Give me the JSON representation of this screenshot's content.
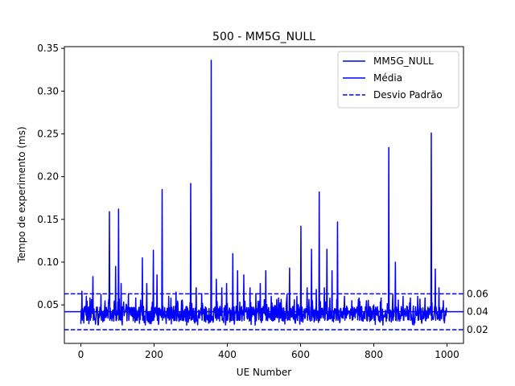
{
  "chart_data": {
    "type": "line",
    "title": "500 - MM5G_NULL",
    "xlabel": "UE Number",
    "ylabel": "Tempo de experimento (ms)",
    "xlim": [
      -45,
      1045
    ],
    "ylim": [
      0.005,
      0.352
    ],
    "x_ticks": [
      0,
      200,
      400,
      600,
      800,
      1000
    ],
    "y_ticks": [
      0.05,
      0.1,
      0.15,
      0.2,
      0.25,
      0.3,
      0.35
    ],
    "x_tick_labels": [
      "0",
      "200",
      "400",
      "600",
      "800",
      "1000"
    ],
    "y_tick_labels": [
      "0.05",
      "0.10",
      "0.15",
      "0.20",
      "0.25",
      "0.30",
      "0.35"
    ],
    "legend_position": "top-right",
    "grid": false,
    "series": [
      {
        "name": "MM5G_NULL",
        "style": "solid",
        "color": "#0000ff",
        "baseline": 0.04,
        "x_range": [
          0,
          999
        ],
        "peaks": [
          {
            "x": 3,
            "y": 0.066
          },
          {
            "x": 15,
            "y": 0.06
          },
          {
            "x": 25,
            "y": 0.058
          },
          {
            "x": 33,
            "y": 0.083
          },
          {
            "x": 55,
            "y": 0.062
          },
          {
            "x": 78,
            "y": 0.159
          },
          {
            "x": 95,
            "y": 0.095
          },
          {
            "x": 103,
            "y": 0.162
          },
          {
            "x": 110,
            "y": 0.075
          },
          {
            "x": 130,
            "y": 0.062
          },
          {
            "x": 150,
            "y": 0.058
          },
          {
            "x": 168,
            "y": 0.105
          },
          {
            "x": 180,
            "y": 0.075
          },
          {
            "x": 198,
            "y": 0.114
          },
          {
            "x": 208,
            "y": 0.085
          },
          {
            "x": 222,
            "y": 0.185
          },
          {
            "x": 240,
            "y": 0.06
          },
          {
            "x": 260,
            "y": 0.065
          },
          {
            "x": 275,
            "y": 0.055
          },
          {
            "x": 300,
            "y": 0.192
          },
          {
            "x": 315,
            "y": 0.07
          },
          {
            "x": 330,
            "y": 0.063
          },
          {
            "x": 356,
            "y": 0.336
          },
          {
            "x": 370,
            "y": 0.08
          },
          {
            "x": 385,
            "y": 0.07
          },
          {
            "x": 398,
            "y": 0.075
          },
          {
            "x": 415,
            "y": 0.11
          },
          {
            "x": 428,
            "y": 0.09
          },
          {
            "x": 445,
            "y": 0.085
          },
          {
            "x": 462,
            "y": 0.07
          },
          {
            "x": 478,
            "y": 0.062
          },
          {
            "x": 490,
            "y": 0.075
          },
          {
            "x": 505,
            "y": 0.09
          },
          {
            "x": 520,
            "y": 0.06
          },
          {
            "x": 540,
            "y": 0.058
          },
          {
            "x": 563,
            "y": 0.062
          },
          {
            "x": 570,
            "y": 0.093
          },
          {
            "x": 590,
            "y": 0.06
          },
          {
            "x": 601,
            "y": 0.142
          },
          {
            "x": 618,
            "y": 0.07
          },
          {
            "x": 630,
            "y": 0.115
          },
          {
            "x": 643,
            "y": 0.068
          },
          {
            "x": 651,
            "y": 0.182
          },
          {
            "x": 665,
            "y": 0.07
          },
          {
            "x": 672,
            "y": 0.115
          },
          {
            "x": 686,
            "y": 0.09
          },
          {
            "x": 701,
            "y": 0.147
          },
          {
            "x": 720,
            "y": 0.06
          },
          {
            "x": 740,
            "y": 0.055
          },
          {
            "x": 760,
            "y": 0.058
          },
          {
            "x": 780,
            "y": 0.055
          },
          {
            "x": 800,
            "y": 0.05
          },
          {
            "x": 820,
            "y": 0.058
          },
          {
            "x": 841,
            "y": 0.234
          },
          {
            "x": 852,
            "y": 0.062
          },
          {
            "x": 859,
            "y": 0.1
          },
          {
            "x": 880,
            "y": 0.06
          },
          {
            "x": 900,
            "y": 0.058
          },
          {
            "x": 920,
            "y": 0.06
          },
          {
            "x": 940,
            "y": 0.058
          },
          {
            "x": 957,
            "y": 0.251
          },
          {
            "x": 968,
            "y": 0.092
          },
          {
            "x": 978,
            "y": 0.07
          },
          {
            "x": 990,
            "y": 0.055
          }
        ]
      },
      {
        "name": "Média",
        "style": "solid",
        "color": "#0000ff",
        "y": 0.042
      },
      {
        "name": "Desvio Padrão",
        "style": "dashed",
        "color": "#0000ff",
        "y_values": [
          0.063,
          0.021
        ]
      }
    ],
    "right_annotations": [
      {
        "y": 0.063,
        "text": "0.06"
      },
      {
        "y": 0.042,
        "text": "0.04"
      },
      {
        "y": 0.021,
        "text": "0.02"
      }
    ]
  }
}
